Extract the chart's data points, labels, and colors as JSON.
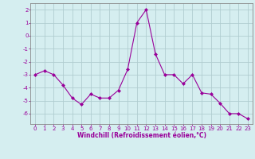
{
  "x": [
    0,
    1,
    2,
    3,
    4,
    5,
    6,
    7,
    8,
    9,
    10,
    11,
    12,
    13,
    14,
    15,
    16,
    17,
    18,
    19,
    20,
    21,
    22,
    23
  ],
  "y": [
    -3.0,
    -2.7,
    -3.0,
    -3.8,
    -4.8,
    -5.3,
    -4.5,
    -4.8,
    -4.8,
    -4.2,
    -2.6,
    1.0,
    2.0,
    -1.4,
    -3.0,
    -3.0,
    -3.7,
    -3.0,
    -4.4,
    -4.5,
    -5.2,
    -6.0,
    -6.0,
    -6.4
  ],
  "line_color": "#990099",
  "marker": "D",
  "marker_size": 2.0,
  "bg_color": "#d5eef0",
  "grid_color": "#b0cdd0",
  "xlabel": "Windchill (Refroidissement éolien,°C)",
  "xlabel_color": "#990099",
  "tick_color": "#990099",
  "spine_color": "#888888",
  "ylim": [
    -6.8,
    2.5
  ],
  "xlim": [
    -0.5,
    23.5
  ],
  "yticks": [
    -6,
    -5,
    -4,
    -3,
    -2,
    -1,
    0,
    1,
    2
  ],
  "xticks": [
    0,
    1,
    2,
    3,
    4,
    5,
    6,
    7,
    8,
    9,
    10,
    11,
    12,
    13,
    14,
    15,
    16,
    17,
    18,
    19,
    20,
    21,
    22,
    23
  ],
  "tick_fontsize": 5.0,
  "xlabel_fontsize": 5.5
}
